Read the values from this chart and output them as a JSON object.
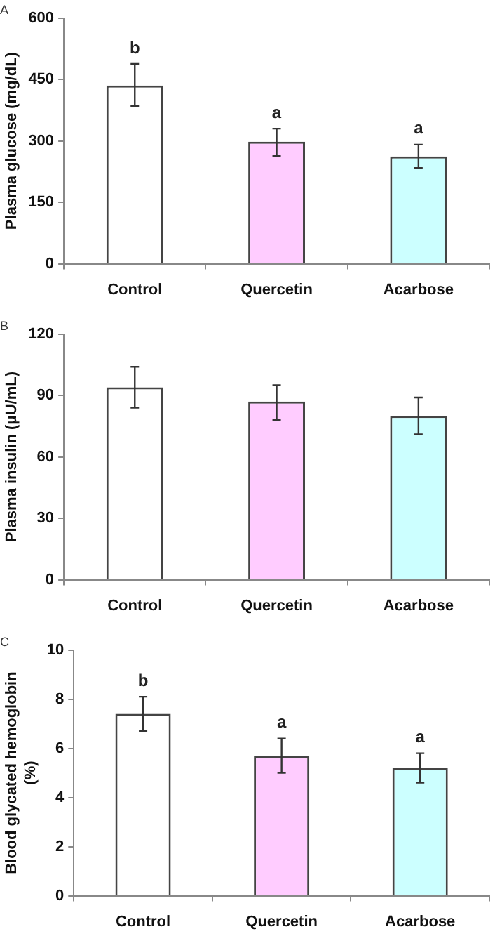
{
  "chart_data": [
    {
      "type": "bar",
      "title": "A",
      "ylabel": "Plasma glucose (mg/dL)",
      "categories": [
        "Control",
        "Quercetin",
        "Acarbose"
      ],
      "values": [
        435,
        298,
        262
      ],
      "colors": [
        "#ffffff",
        "#ffccff",
        "#ccffff"
      ],
      "errors": [
        [
          385,
          488
        ],
        [
          263,
          330
        ],
        [
          234,
          291
        ]
      ],
      "ylim": [
        0,
        600
      ],
      "yticks": [
        0,
        150,
        300,
        450,
        600
      ],
      "grid": false,
      "legend": false,
      "annotations": [
        {
          "text": "b",
          "x": "Control",
          "y": 488
        },
        {
          "text": "a",
          "x": "Quercetin",
          "y": 330
        },
        {
          "text": "a",
          "x": "Acarbose",
          "y": 291
        }
      ]
    },
    {
      "type": "bar",
      "title": "B",
      "ylabel": "Plasma insulin (μU/mL)",
      "categories": [
        "Control",
        "Quercetin",
        "Acarbose"
      ],
      "values": [
        94,
        87,
        80
      ],
      "colors": [
        "#ffffff",
        "#ffccff",
        "#ccffff"
      ],
      "errors": [
        [
          84,
          104
        ],
        [
          78,
          95
        ],
        [
          71,
          89
        ]
      ],
      "ylim": [
        0,
        120
      ],
      "yticks": [
        0,
        30,
        60,
        90,
        120
      ],
      "grid": false,
      "legend": false
    },
    {
      "type": "bar",
      "title": "C",
      "ylabel": "Blood glycated hemoglobin\n(%)",
      "categories": [
        "Control",
        "Quercetin",
        "Acarbose"
      ],
      "values": [
        7.4,
        5.7,
        5.2
      ],
      "colors": [
        "#ffffff",
        "#ffccff",
        "#ccffff"
      ],
      "errors": [
        [
          6.7,
          8.1
        ],
        [
          5.0,
          6.4
        ],
        [
          4.6,
          5.8
        ]
      ],
      "ylim": [
        0,
        10
      ],
      "yticks": [
        0,
        2,
        4,
        6,
        8,
        10
      ],
      "grid": false,
      "legend": false,
      "annotations": [
        {
          "text": "b",
          "x": "Control",
          "y": 8.1
        },
        {
          "text": "a",
          "x": "Quercetin",
          "y": 6.4
        },
        {
          "text": "a",
          "x": "Acarbose",
          "y": 5.8
        }
      ]
    }
  ]
}
